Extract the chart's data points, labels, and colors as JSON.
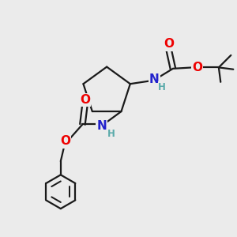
{
  "bg_color": "#ebebeb",
  "bond_color": "#1a1a1a",
  "bond_width": 1.6,
  "atom_colors": {
    "O": "#ee0000",
    "N": "#2222cc",
    "H_color": "#5aaaaa"
  },
  "font_size_main": 10,
  "font_size_H": 8.5
}
